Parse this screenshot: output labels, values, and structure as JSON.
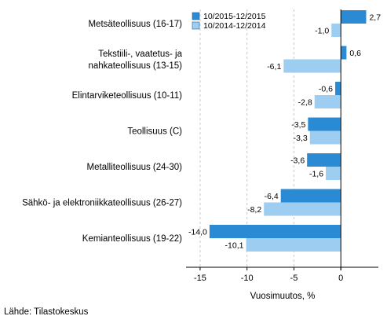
{
  "chart_data": {
    "type": "bar",
    "orientation": "horizontal",
    "categories": [
      [
        "Metsäteollisuus (16-17)"
      ],
      [
        "Tekstiili-, vaatetus- ja",
        "nahkateollisuus (13-15)"
      ],
      [
        "Elintarviketeollisuus (10-11)"
      ],
      [
        "Teollisuus (C)"
      ],
      [
        "Metalliteollisuus (24-30)"
      ],
      [
        "Sähkö- ja elektroniikkateollisuus (26-27)"
      ],
      [
        "Kemianteollisuus (19-22)"
      ]
    ],
    "series": [
      {
        "name": "10/2015-12/2015",
        "color": "#2a8ad4",
        "values": [
          2.7,
          0.6,
          -0.6,
          -3.5,
          -3.6,
          -6.4,
          -14.0
        ],
        "labels": [
          "2,7",
          "0,6",
          "-0,6",
          "-3,5",
          "-3,6",
          "-6,4",
          "-14,0"
        ]
      },
      {
        "name": "10/2014-12/2014",
        "color": "#9dcdf0",
        "values": [
          -1.0,
          -6.1,
          -2.8,
          -3.3,
          -1.6,
          -8.2,
          -10.1
        ],
        "labels": [
          "-1,0",
          "-6,1",
          "-2,8",
          "-3,3",
          "-1,6",
          "-8,2",
          "-10,1"
        ]
      }
    ],
    "xlabel": "Vuosimuutos, %",
    "xlim": [
      -16.5,
      4
    ],
    "xticks": [
      -15,
      -10,
      -5,
      0
    ],
    "xtick_labels": [
      "-15",
      "-10",
      "-5",
      "0"
    ],
    "grid": true,
    "legend_position": "top"
  },
  "source": "Lähde: Tilastokeskus"
}
